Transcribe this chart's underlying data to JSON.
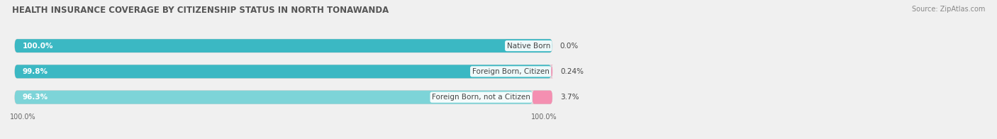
{
  "title": "HEALTH INSURANCE COVERAGE BY CITIZENSHIP STATUS IN NORTH TONAWANDA",
  "source": "Source: ZipAtlas.com",
  "categories": [
    "Native Born",
    "Foreign Born, Citizen",
    "Foreign Born, not a Citizen"
  ],
  "with_coverage": [
    100.0,
    99.8,
    96.3
  ],
  "without_coverage": [
    0.0,
    0.24,
    3.7
  ],
  "with_coverage_labels": [
    "100.0%",
    "99.8%",
    "96.3%"
  ],
  "without_coverage_labels": [
    "0.0%",
    "0.24%",
    "3.7%"
  ],
  "color_with": "#3BB8C3",
  "color_with_light": "#7DD4D8",
  "color_without": "#F48FB1",
  "background_color": "#f0f0f0",
  "bar_background": "#e2e2e2",
  "title_fontsize": 8.5,
  "label_fontsize": 7.5,
  "source_fontsize": 7,
  "tick_fontsize": 7,
  "legend_fontsize": 7.5,
  "bar_scale": 55.0,
  "x_axis_label_left": "100.0%",
  "x_axis_label_right": "100.0%"
}
